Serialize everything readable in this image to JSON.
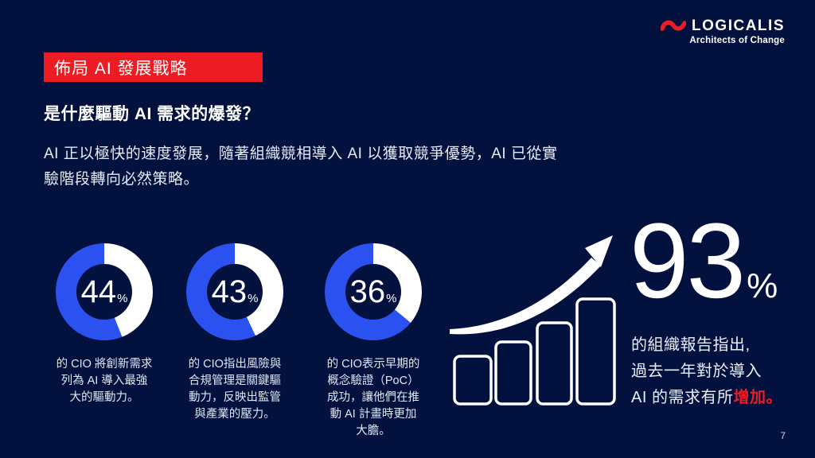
{
  "brand": {
    "name": "LOGICALIS",
    "tagline": "Architects of Change"
  },
  "colors": {
    "background": "#03113f",
    "accent_red": "#ed1c24",
    "donut_blue": "#2b52f0",
    "donut_rest": "#ffffff",
    "text": "#ffffff"
  },
  "banner": {
    "label": "佈局 AI 發展戰略"
  },
  "heading": {
    "text": "是什麼驅動 AI 需求的爆發？"
  },
  "intro": {
    "lines": [
      "AI 正以極快的速度發展，隨著組織競相導入 AI 以獲取競爭優勢，AI 已從實",
      "驗階段轉向必然策略。"
    ]
  },
  "chart_data": [
    {
      "type": "pie",
      "style": "donut",
      "value": 44,
      "unit": "%",
      "series": [
        {
          "name": "CIO share",
          "value": 44
        },
        {
          "name": "rest",
          "value": 56
        }
      ],
      "caption_lines": [
        "的 CIO 將創新需求",
        "列為 AI 導入最強",
        "大的驅動力。"
      ]
    },
    {
      "type": "pie",
      "style": "donut",
      "value": 43,
      "unit": "%",
      "series": [
        {
          "name": "CIO share",
          "value": 43
        },
        {
          "name": "rest",
          "value": 57
        }
      ],
      "caption_lines": [
        "的 CIO指出風險與",
        "合規管理是關鍵驅",
        "動力，反映出監管",
        "與產業的壓力。"
      ]
    },
    {
      "type": "pie",
      "style": "donut",
      "value": 36,
      "unit": "%",
      "series": [
        {
          "name": "CIO share",
          "value": 36
        },
        {
          "name": "rest",
          "value": 64
        }
      ],
      "caption_lines": [
        "的 CIO表示早期的",
        "概念驗證（PoC）",
        "成功，讓他們在推",
        "動 AI 計畫時更加",
        "大膽。"
      ]
    },
    {
      "type": "bar",
      "role": "decorative-growth-trend-icon",
      "values": [
        60,
        78,
        102,
        132
      ]
    }
  ],
  "stat": {
    "value": "93",
    "unit": "%",
    "lines": [
      "的組織報告指出,",
      "過去一年對於導入"
    ],
    "last_line_prefix": "AI 的需求有所",
    "last_line_highlight": "增加。"
  },
  "page_number": "7"
}
